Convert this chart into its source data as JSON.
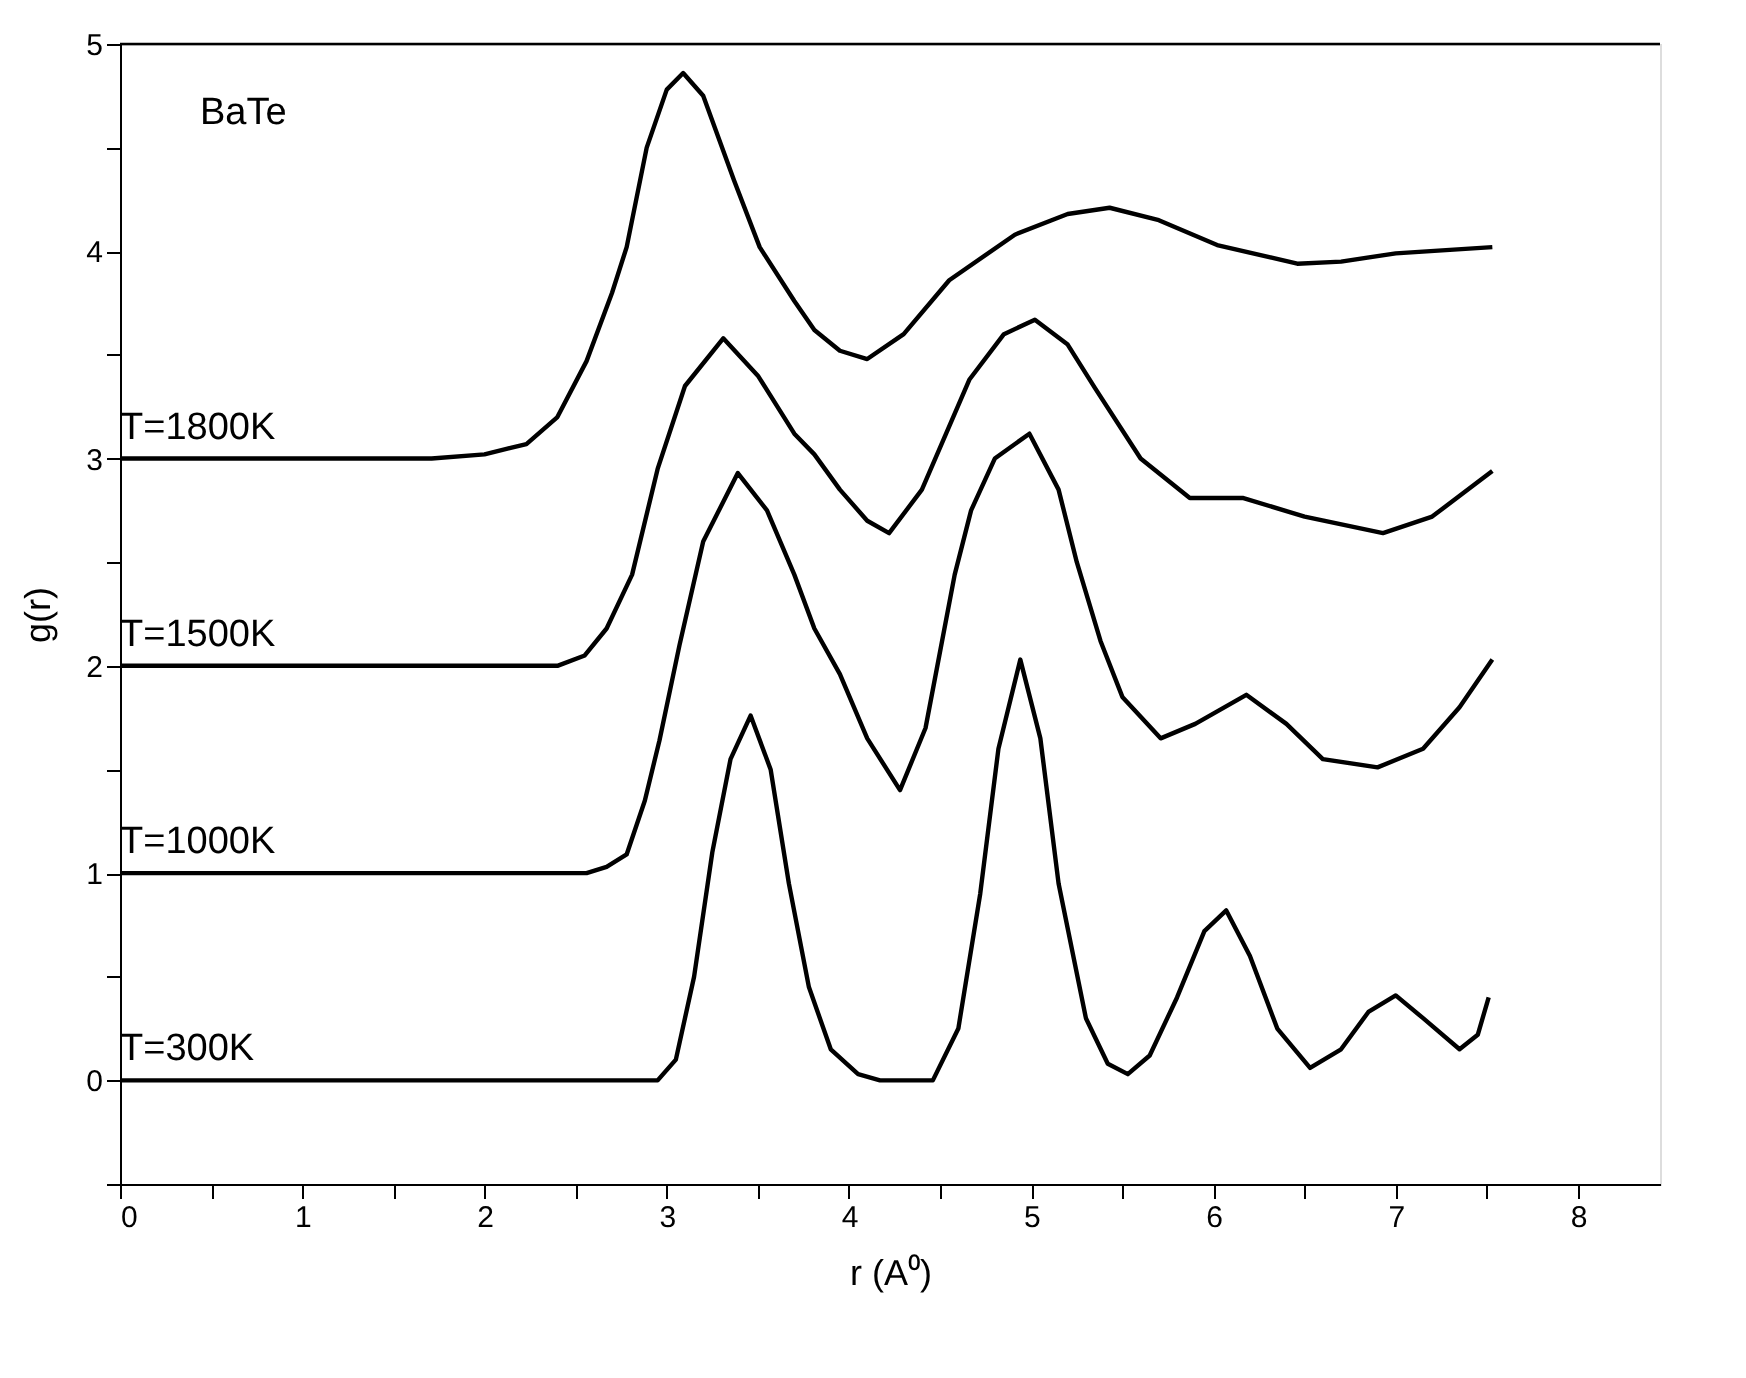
{
  "chart_data": {
    "type": "line",
    "xlabel": "r (A⁰)",
    "ylabel": "g(r)",
    "annotations": [
      "BaTe"
    ],
    "xlim": [
      0,
      8.45
    ],
    "ylim": [
      -0.5,
      5
    ],
    "xticks": [
      0,
      {
        "value": 0.5,
        "label": null
      },
      1,
      {
        "value": 1.5,
        "label": null
      },
      2,
      {
        "value": 2.5,
        "label": null
      },
      3,
      {
        "value": 3.5,
        "label": null
      },
      4,
      {
        "value": 4.5,
        "label": null
      },
      5,
      {
        "value": 5.5,
        "label": null
      },
      6,
      {
        "value": 6.5,
        "label": null
      },
      7,
      {
        "value": 7.5,
        "label": null
      },
      8
    ],
    "yticks": [
      {
        "value": -0.5,
        "label": null
      },
      0,
      {
        "value": 0.5,
        "label": null
      },
      1,
      {
        "value": 1.5,
        "label": null
      },
      2,
      {
        "value": 2.5,
        "label": null
      },
      3,
      {
        "value": 3.5,
        "label": null
      },
      4,
      {
        "value": 4.5,
        "label": null
      },
      5
    ],
    "grid": false,
    "legend": false,
    "marker": "none",
    "line_style": "solid",
    "series": [
      {
        "name": "T=300K",
        "color": "#000000",
        "x": [
          0,
          2.95,
          3.05,
          3.15,
          3.25,
          3.35,
          3.46,
          3.57,
          3.67,
          3.78,
          3.9,
          4.05,
          4.17,
          4.46,
          4.6,
          4.72,
          4.82,
          4.94,
          5.05,
          5.15,
          5.3,
          5.42,
          5.53,
          5.65,
          5.8,
          5.95,
          6.07,
          6.2,
          6.35,
          6.53,
          6.7,
          6.85,
          7.0,
          7.15,
          7.35,
          7.45,
          7.51
        ],
        "values": [
          0,
          0,
          0.1,
          0.5,
          1.1,
          1.55,
          1.76,
          1.5,
          0.95,
          0.45,
          0.15,
          0.03,
          0,
          0,
          0.25,
          0.9,
          1.6,
          2.03,
          1.65,
          0.95,
          0.3,
          0.08,
          0.03,
          0.12,
          0.4,
          0.72,
          0.82,
          0.6,
          0.25,
          0.06,
          0.15,
          0.33,
          0.41,
          0.3,
          0.15,
          0.22,
          0.4
        ]
      },
      {
        "name": "T=1000K",
        "color": "#000000",
        "x": [
          0,
          2.56,
          2.67,
          2.78,
          2.88,
          2.96,
          3.07,
          3.2,
          3.39,
          3.55,
          3.7,
          3.81,
          3.95,
          4.1,
          4.28,
          4.42,
          4.58,
          4.67,
          4.8,
          4.99,
          5.15,
          5.25,
          5.38,
          5.5,
          5.71,
          5.9,
          6.18,
          6.4,
          6.6,
          6.9,
          7.15,
          7.35,
          7.53
        ],
        "values": [
          1,
          1,
          1.03,
          1.09,
          1.35,
          1.64,
          2.1,
          2.6,
          2.93,
          2.75,
          2.44,
          2.18,
          1.96,
          1.65,
          1.4,
          1.7,
          2.44,
          2.75,
          3.0,
          3.12,
          2.85,
          2.5,
          2.12,
          1.85,
          1.65,
          1.72,
          1.86,
          1.72,
          1.55,
          1.51,
          1.6,
          1.8,
          2.03
        ]
      },
      {
        "name": "T=1500K",
        "color": "#000000",
        "x": [
          0,
          2.4,
          2.55,
          2.67,
          2.81,
          2.95,
          3.1,
          3.31,
          3.5,
          3.7,
          3.81,
          3.95,
          4.1,
          4.22,
          4.4,
          4.66,
          4.85,
          5.02,
          5.2,
          5.35,
          5.6,
          5.87,
          6.16,
          6.5,
          6.93,
          7.2,
          7.53
        ],
        "values": [
          2,
          2,
          2.05,
          2.18,
          2.44,
          2.95,
          3.35,
          3.58,
          3.4,
          3.12,
          3.02,
          2.85,
          2.7,
          2.64,
          2.85,
          3.38,
          3.6,
          3.67,
          3.55,
          3.34,
          3.0,
          2.81,
          2.81,
          2.72,
          2.64,
          2.72,
          2.94
        ]
      },
      {
        "name": "T=1800K",
        "color": "#000000",
        "x": [
          0,
          1.71,
          2.0,
          2.23,
          2.4,
          2.56,
          2.7,
          2.78,
          2.89,
          3.0,
          3.09,
          3.2,
          3.37,
          3.51,
          3.7,
          3.81,
          3.95,
          4.1,
          4.3,
          4.55,
          4.91,
          5.2,
          5.43,
          5.7,
          6.02,
          6.46,
          6.7,
          7.0,
          7.53
        ],
        "values": [
          3,
          3,
          3.02,
          3.07,
          3.2,
          3.47,
          3.8,
          4.02,
          4.5,
          4.78,
          4.86,
          4.75,
          4.34,
          4.02,
          3.76,
          3.62,
          3.52,
          3.48,
          3.6,
          3.86,
          4.08,
          4.18,
          4.21,
          4.15,
          4.03,
          3.94,
          3.95,
          3.99,
          4.02
        ]
      }
    ]
  }
}
